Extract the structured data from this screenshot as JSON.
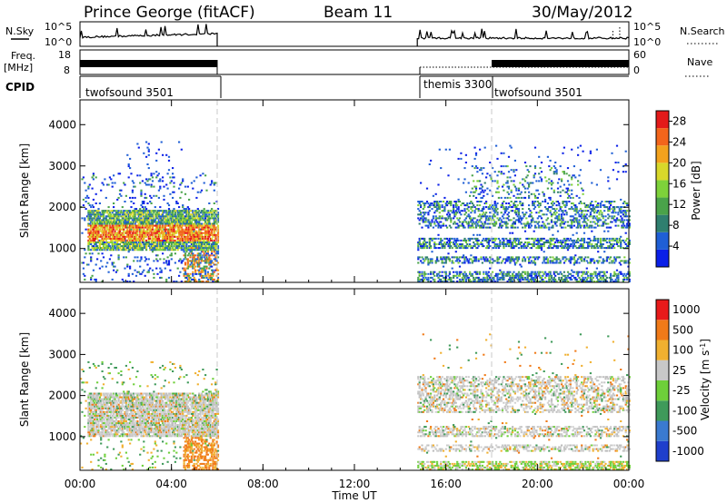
{
  "header": {
    "station": "Prince George (fitACF)",
    "beam": "Beam 11",
    "date": "30/May/2012"
  },
  "strip_labels": {
    "nsky": "N.Sky",
    "nsky_ticks": [
      "10^5",
      "10^0"
    ],
    "nsearch": "N.Search",
    "nsearch_ticks": [
      "10^5",
      "10^0"
    ],
    "freq_1": "Freq.",
    "freq_2": "[MHz]",
    "freq_ticks": [
      "18",
      "8"
    ],
    "nave": "Nave",
    "nave_ticks": [
      "60",
      "0"
    ],
    "cpid": "CPID"
  },
  "cpid_segments": [
    {
      "name": "twofsound 3501",
      "start": "00:00",
      "end": "06:00"
    },
    {
      "name": "themis 3300",
      "start": "14:45",
      "end": "18:00"
    },
    {
      "name": "twofsound 3501",
      "start": "18:00",
      "end": "24:00"
    }
  ],
  "chart_data": [
    {
      "type": "heatmap",
      "parameter": "Power",
      "xlabel": "Time UT",
      "ylabel": "Slant Range [km]",
      "xlim": [
        0,
        24
      ],
      "ylim": [
        180,
        4600
      ],
      "x_ticks": [
        "00:00",
        "04:00",
        "08:00",
        "12:00",
        "16:00",
        "20:00",
        "00:00"
      ],
      "y_ticks": [
        "1000",
        "2000",
        "3000",
        "4000"
      ],
      "colorbar": {
        "label": "Power [dB]",
        "ticks": [
          "4",
          "8",
          "12",
          "16",
          "20",
          "24",
          "28"
        ],
        "colors": [
          "#0a1fe8",
          "#1f5fd6",
          "#2f7f6f",
          "#4aa34a",
          "#7ed23a",
          "#d8d82a",
          "#f3a21d",
          "#f3651b",
          "#e31a1a"
        ],
        "range": [
          0,
          30
        ]
      },
      "observation_windows": [
        {
          "start": "00:00",
          "end": "06:00"
        },
        {
          "start": "14:45",
          "end": "24:00"
        }
      ]
    },
    {
      "type": "heatmap",
      "parameter": "Velocity",
      "xlabel": "Time UT",
      "ylabel": "Slant Range [km]",
      "xlim": [
        0,
        24
      ],
      "ylim": [
        180,
        4600
      ],
      "x_ticks": [
        "00:00",
        "04:00",
        "08:00",
        "12:00",
        "16:00",
        "20:00",
        "00:00"
      ],
      "y_ticks": [
        "1000",
        "2000",
        "3000",
        "4000"
      ],
      "colorbar": {
        "label": "Velocity [m s^-1]",
        "ticks": [
          "1000",
          "500",
          "100",
          "25",
          "-25",
          "-100",
          "-500",
          "-1000"
        ],
        "colors": [
          "#1f3fcc",
          "#3a7ad0",
          "#3f9a5a",
          "#6ecf3a",
          "#c8c8c8",
          "#f0b030",
          "#f07a18",
          "#e81a1a"
        ]
      },
      "observation_windows": [
        {
          "start": "00:00",
          "end": "06:00"
        },
        {
          "start": "14:45",
          "end": "24:00"
        }
      ]
    }
  ]
}
